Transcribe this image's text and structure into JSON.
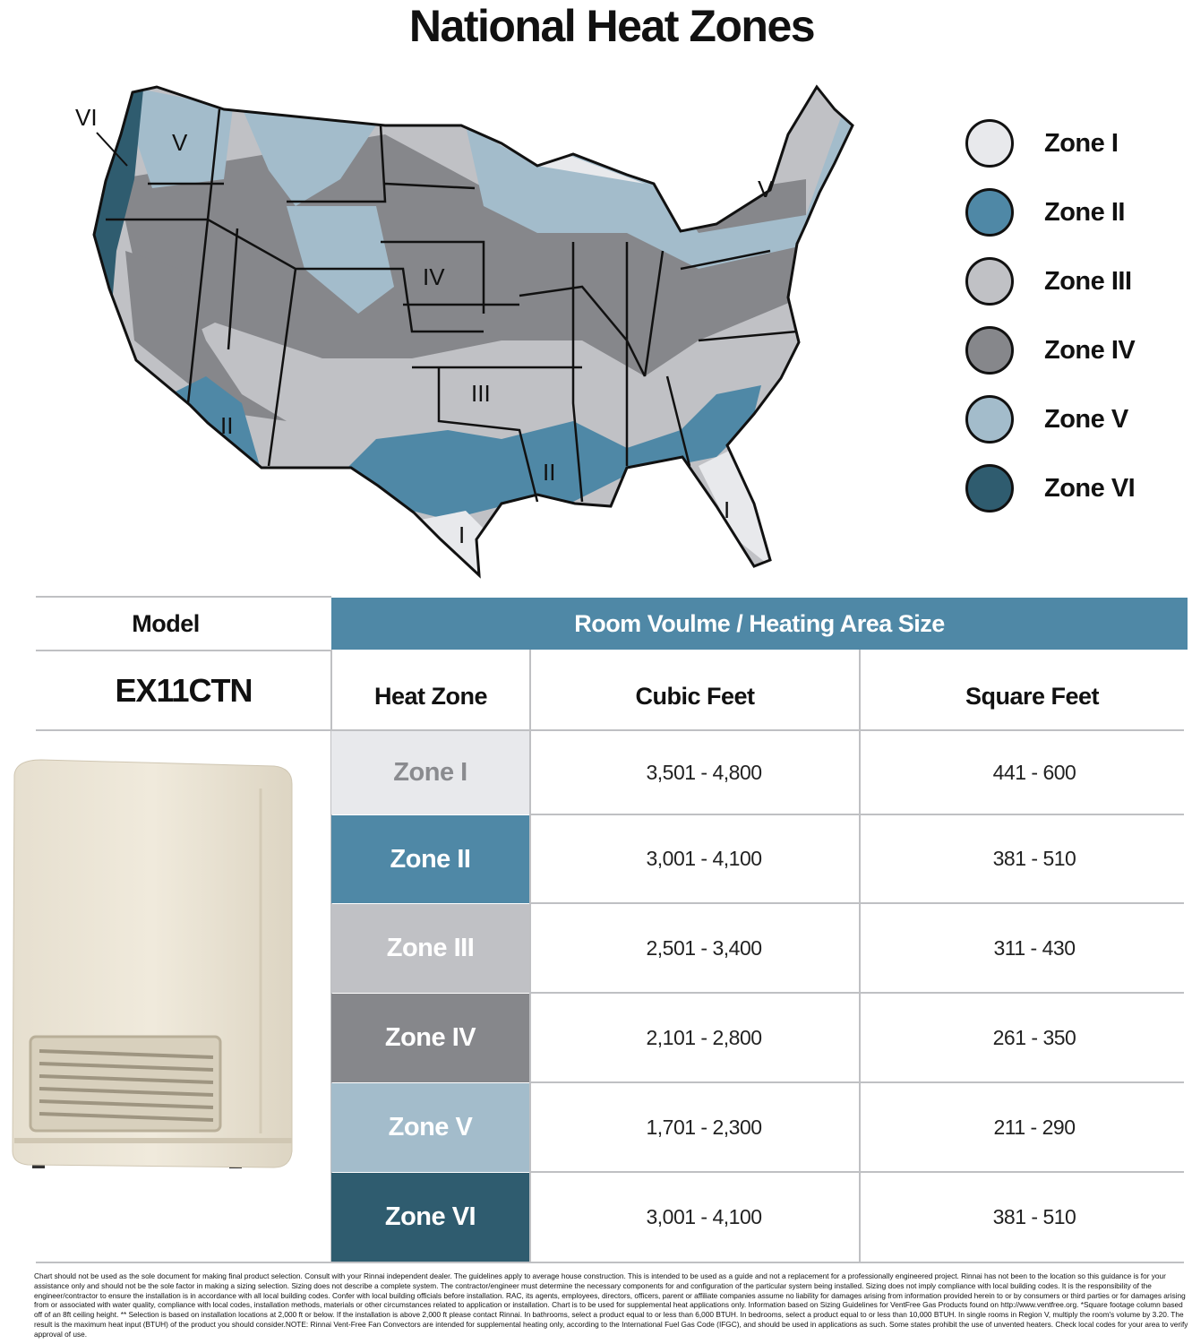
{
  "title": "National Heat Zones",
  "map": {
    "region_labels": [
      "VI",
      "V",
      "IV",
      "III",
      "II",
      "II",
      "I",
      "I",
      "V"
    ]
  },
  "legend": [
    {
      "label": "Zone I",
      "color": "#e8e9ec"
    },
    {
      "label": "Zone II",
      "color": "#4f88a6"
    },
    {
      "label": "Zone III",
      "color": "#c0c1c5"
    },
    {
      "label": "Zone IV",
      "color": "#86878b"
    },
    {
      "label": "Zone V",
      "color": "#a3bccb"
    },
    {
      "label": "Zone VI",
      "color": "#2f5c6f"
    }
  ],
  "table": {
    "model_header": "Model",
    "area_header": "Room Voulme / Heating Area Size",
    "model": "EX11CTN",
    "columns": [
      "Heat Zone",
      "Cubic Feet",
      "Square Feet"
    ],
    "rows": [
      {
        "zone": "Zone I",
        "cubic": "3,501 - 4,800",
        "square": "441 - 600",
        "color": "#e8e9ec",
        "text_color": "#8a8b8f"
      },
      {
        "zone": "Zone II",
        "cubic": "3,001 - 4,100",
        "square": "381 - 510",
        "color": "#4f88a6",
        "text_color": "#ffffff"
      },
      {
        "zone": "Zone III",
        "cubic": "2,501 - 3,400",
        "square": "311 - 430",
        "color": "#c0c1c5",
        "text_color": "#ffffff"
      },
      {
        "zone": "Zone IV",
        "cubic": "2,101 - 2,800",
        "square": "261 - 350",
        "color": "#86878b",
        "text_color": "#ffffff"
      },
      {
        "zone": "Zone V",
        "cubic": "1,701 - 2,300",
        "square": "211 - 290",
        "color": "#a3bccb",
        "text_color": "#ffffff"
      },
      {
        "zone": "Zone VI",
        "cubic": "3,001 - 4,100",
        "square": "381 - 510",
        "color": "#2f5c6f",
        "text_color": "#ffffff"
      }
    ]
  },
  "footnote": "Chart should not be used as the sole document for making final product selection. Consult with your Rinnai independent dealer. The guidelines apply to average house construction. This is intended to be used as a guide and not a replacement for a professionally engineered project. Rinnai has not been to the location so this guidance is for your assistance only and should not be the sole factor in making a sizing selection. Sizing does not describe a complete system. The contractor/engineer must determine the necessary components for and configuration of the particular system being installed. Sizing does not imply compliance with local building codes. It is the responsibility of the engineer/contractor to ensure the installation is in accordance with all local building codes. Confer with local building officials before installation. RAC, its agents, employees, directors, officers, parent or affiliate companies assume no liability for damages arising from information provided herein to or by consumers or third parties or for damages arising from or associated with water quality, compliance with local codes, installation methods, materials or other circumstances related to application or installation. Chart is to be used for supplemental heat applications only. Information based on Sizing Guidelines for VentFree Gas Products found on http://www.ventfree.org. *Square footage column based off of an 8ft ceiling height. ** Selection is based on installation locations at 2,000 ft or below. If the installation is above 2,000 ft please contact Rinnai. In bathrooms, select a product equal to or less than 6,000 BTUH. In bedrooms, select a product equal to or less than 10,000 BTUH. In single rooms in Region V, multiply the room's volume by 3.20. The result is the maximum heat input (BTUH) of the product you should consider.NOTE: Rinnai Vent-Free Fan Convectors are intended for supplemental heating only, according to the International Fuel Gas Code (IFGC), and should be used in applications as such. Some states prohibit the use of unvented heaters. Check local codes for your area to verify approval of use."
}
